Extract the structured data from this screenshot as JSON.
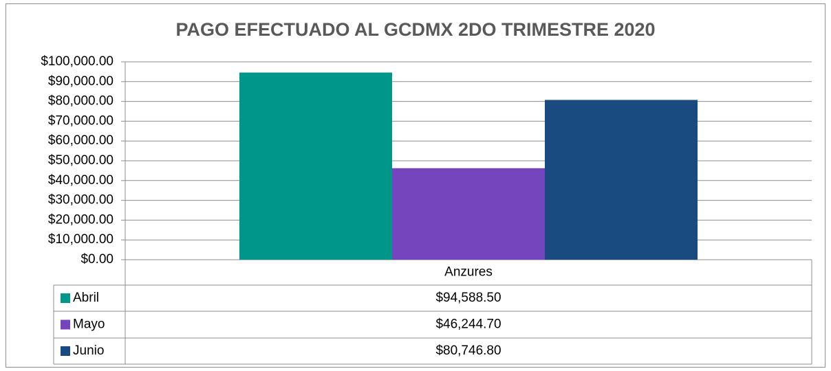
{
  "chart_data": {
    "type": "bar",
    "title": "PAGO EFECTUADO AL GCDMX 2DO TRIMESTRE 2020",
    "categories": [
      "Anzures"
    ],
    "series": [
      {
        "name": "Abril",
        "color": "#00968a",
        "values": [
          94588.5
        ],
        "value_labels": [
          "$94,588.50"
        ]
      },
      {
        "name": "Mayo",
        "color": "#7545be",
        "values": [
          46244.7
        ],
        "value_labels": [
          "$46,244.70"
        ]
      },
      {
        "name": "Junio",
        "color": "#1a4b80",
        "values": [
          80746.8
        ],
        "value_labels": [
          "$80,746.80"
        ]
      }
    ],
    "ylim": [
      0,
      100000
    ],
    "yticks": [
      {
        "value": 0,
        "label": "$0.00"
      },
      {
        "value": 10000,
        "label": "$10,000.00"
      },
      {
        "value": 20000,
        "label": "$20,000.00"
      },
      {
        "value": 30000,
        "label": "$30,000.00"
      },
      {
        "value": 40000,
        "label": "$40,000.00"
      },
      {
        "value": 50000,
        "label": "$50,000.00"
      },
      {
        "value": 60000,
        "label": "$60,000.00"
      },
      {
        "value": 70000,
        "label": "$70,000.00"
      },
      {
        "value": 80000,
        "label": "$80,000.00"
      },
      {
        "value": 90000,
        "label": "$90,000.00"
      },
      {
        "value": 100000,
        "label": "$100,000.00"
      }
    ],
    "grid": true
  }
}
